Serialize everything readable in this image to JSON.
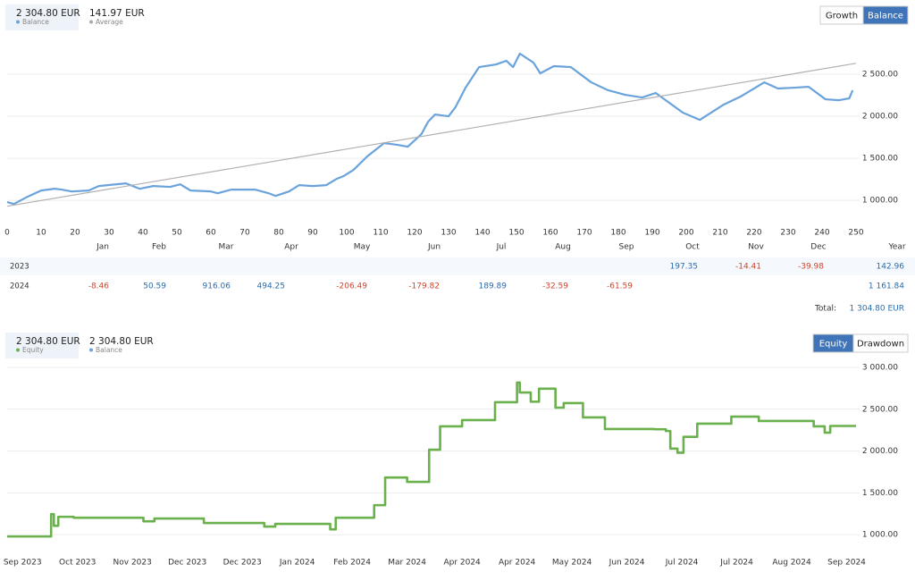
{
  "chart_data": [
    {
      "type": "line",
      "legend": [
        {
          "value": "2 304.80 EUR",
          "name": "Balance",
          "color": "#6aa3dc"
        },
        {
          "value": "141.97 EUR",
          "name": "Average",
          "color": "#aaaaaa"
        }
      ],
      "buttons": [
        "Growth",
        "Balance"
      ],
      "active_button": 1,
      "xlim": [
        0,
        250
      ],
      "xticks": [
        0,
        10,
        20,
        30,
        40,
        50,
        60,
        70,
        80,
        90,
        100,
        110,
        120,
        130,
        140,
        150,
        160,
        170,
        180,
        190,
        200,
        210,
        220,
        230,
        240,
        250
      ],
      "ylim": [
        725,
        3000
      ],
      "yticks": [
        {
          "value": 1000,
          "label": "1 000.00"
        },
        {
          "value": 1500,
          "label": "1 500.00"
        },
        {
          "value": 2000,
          "label": "2 000.00"
        },
        {
          "value": 2500,
          "label": "2 500.00"
        }
      ],
      "grid": true,
      "series": [
        {
          "color": "#6aa3dc",
          "width": 2.2,
          "x": [
            0,
            2,
            6,
            10,
            14,
            16,
            19,
            24,
            27,
            35,
            37,
            39,
            43,
            48,
            51,
            54,
            60,
            62,
            66,
            73,
            77,
            79,
            83,
            86,
            90,
            94,
            97,
            99,
            102,
            106,
            110,
            111,
            115,
            118,
            122,
            124,
            126,
            130,
            132,
            135,
            139,
            144,
            147,
            149,
            151,
            155,
            157,
            161,
            166,
            172,
            177,
            182,
            187,
            191,
            199,
            204,
            211,
            216,
            223,
            227,
            232,
            236,
            241,
            245,
            248,
            249
          ],
          "values": [
            979,
            957,
            1043,
            1117,
            1138,
            1128,
            1106,
            1117,
            1170,
            1202,
            1170,
            1138,
            1170,
            1160,
            1191,
            1117,
            1106,
            1085,
            1128,
            1128,
            1085,
            1053,
            1106,
            1181,
            1170,
            1181,
            1255,
            1287,
            1362,
            1521,
            1649,
            1681,
            1660,
            1638,
            1787,
            1936,
            2021,
            2000,
            2106,
            2340,
            2585,
            2617,
            2660,
            2585,
            2745,
            2638,
            2511,
            2596,
            2585,
            2404,
            2309,
            2255,
            2223,
            2277,
            2043,
            1957,
            2138,
            2234,
            2404,
            2330,
            2340,
            2351,
            2202,
            2191,
            2213,
            2309
          ]
        },
        {
          "color": "#b0b0b0",
          "width": 1.2,
          "x": [
            0,
            250
          ],
          "values": [
            930,
            2630
          ]
        }
      ]
    },
    {
      "type": "step",
      "legend": [
        {
          "value": "2 304.80 EUR",
          "name": "Equity",
          "color": "#6ab04c"
        },
        {
          "value": "2 304.80 EUR",
          "name": "Balance",
          "color": "#6aa3dc"
        }
      ],
      "buttons": [
        "Equity",
        "Drawdown"
      ],
      "active_button": 0,
      "xlim": [
        -0.28,
        15.17
      ],
      "xticks": [
        {
          "value": 0,
          "label": "Sep 2023"
        },
        {
          "value": 1,
          "label": "Oct 2023"
        },
        {
          "value": 2,
          "label": "Nov 2023"
        },
        {
          "value": 3,
          "label": "Dec 2023"
        },
        {
          "value": 4,
          "label": "Dec 2023"
        },
        {
          "value": 5,
          "label": "Jan 2024"
        },
        {
          "value": 6,
          "label": "Feb 2024"
        },
        {
          "value": 7,
          "label": "Mar 2024"
        },
        {
          "value": 8,
          "label": "Apr 2024"
        },
        {
          "value": 9,
          "label": "Apr 2024"
        },
        {
          "value": 10,
          "label": "May 2024"
        },
        {
          "value": 11,
          "label": "Jun 2024"
        },
        {
          "value": 12,
          "label": "Jul 2024"
        },
        {
          "value": 13,
          "label": "Jul 2024"
        },
        {
          "value": 14,
          "label": "Aug 2024"
        },
        {
          "value": 15,
          "label": "Sep 2024"
        }
      ],
      "ylim": [
        820,
        3000
      ],
      "yticks": [
        {
          "value": 1000,
          "label": "1 000.00"
        },
        {
          "value": 1500,
          "label": "1 500.00"
        },
        {
          "value": 2000,
          "label": "2 000.00"
        },
        {
          "value": 2500,
          "label": "2 500.00"
        },
        {
          "value": 3000,
          "label": "3 000.00"
        }
      ],
      "grid": true,
      "series": [
        {
          "color": "#6ab04c",
          "width": 2.6,
          "x": [
            -0.28,
            0.52,
            0.57,
            0.65,
            0.93,
            1.45,
            2.2,
            2.4,
            3.3,
            4.4,
            4.6,
            5.6,
            5.7,
            6.4,
            6.6,
            7.0,
            7.4,
            7.6,
            8.0,
            8.6,
            9.0,
            9.05,
            9.25,
            9.4,
            9.7,
            9.85,
            10.2,
            10.6,
            11.5,
            11.71,
            11.79,
            11.92,
            12.03,
            12.28,
            12.9,
            13.4,
            13.6,
            14.4,
            14.6,
            14.7,
            15.17
          ],
          "values": [
            979,
            1246,
            1107,
            1214,
            1203,
            1203,
            1160,
            1193,
            1140,
            1097,
            1129,
            1064,
            1203,
            1353,
            1684,
            1631,
            2016,
            2295,
            2370,
            2584,
            2819,
            2700,
            2590,
            2745,
            2519,
            2573,
            2402,
            2263,
            2260,
            2240,
            2030,
            1980,
            2170,
            2327,
            2412,
            2359,
            2360,
            2295,
            2220,
            2300,
            2300
          ]
        }
      ]
    }
  ],
  "monthly_table": {
    "columns": [
      "Jan",
      "Feb",
      "Mar",
      "Apr",
      "May",
      "Jun",
      "Jul",
      "Aug",
      "Sep",
      "Oct",
      "Nov",
      "Dec",
      "Year"
    ],
    "rows": [
      {
        "year": "2023",
        "cells": [
          null,
          null,
          null,
          null,
          null,
          null,
          null,
          null,
          null,
          "197.35",
          "-14.41",
          "-39.98",
          "142.96"
        ]
      },
      {
        "year": "2024",
        "cells": [
          "-8.46",
          "50.59",
          "916.06",
          "494.25",
          "-206.49",
          "-179.82",
          "189.89",
          "-32.59",
          "-61.59",
          null,
          null,
          null,
          "1 161.84"
        ]
      }
    ],
    "total_label": "Total:",
    "total_value": "1 304.80 EUR"
  }
}
